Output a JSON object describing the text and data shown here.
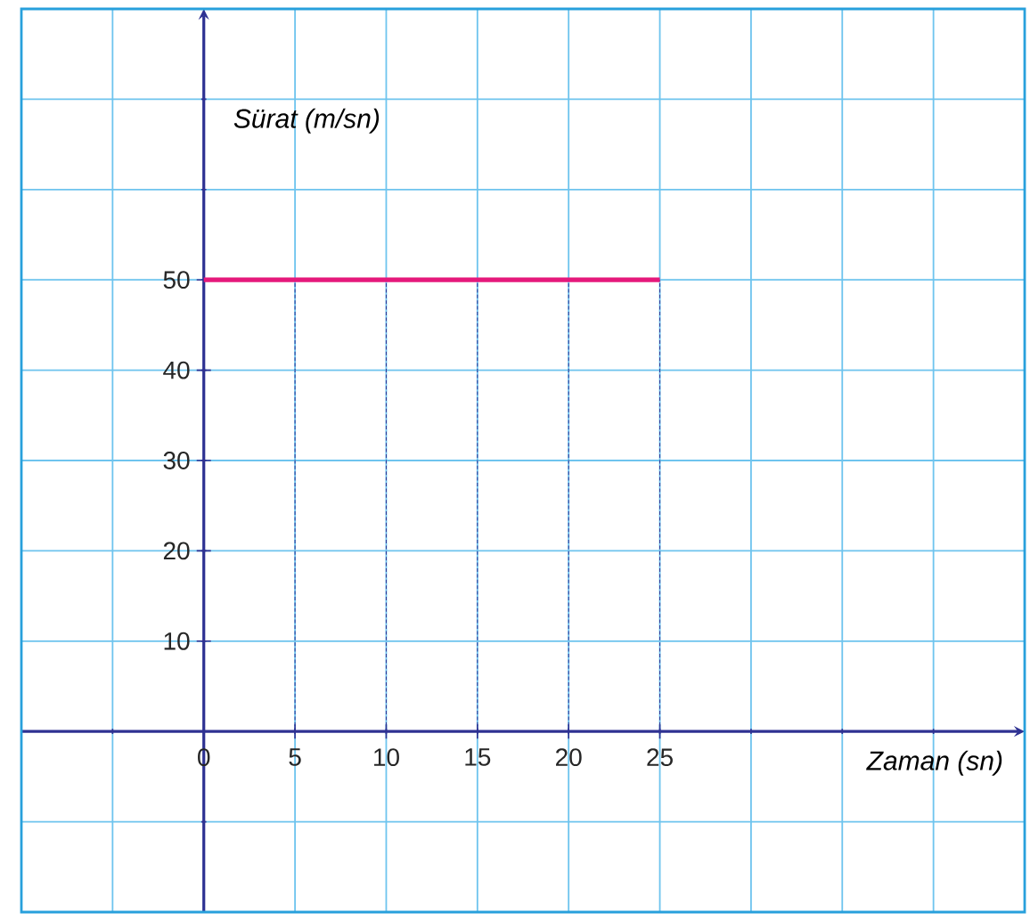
{
  "chart_data": {
    "type": "line",
    "xlabel": "Zaman (sn)",
    "ylabel": "Sürat (m/sn)",
    "xlim": [
      -10,
      45
    ],
    "ylim": [
      -20,
      80
    ],
    "xticks": [
      0,
      5,
      10,
      15,
      20,
      25
    ],
    "yticks": [
      10,
      20,
      30,
      40,
      50
    ],
    "grid": true,
    "marker": "none",
    "line_style": "solid",
    "series": [
      {
        "x": [
          0,
          25
        ],
        "values": [
          50,
          50
        ],
        "color": "#e5197b"
      }
    ],
    "ref_lines": [
      {
        "axis": "x",
        "value": 5,
        "color": "#2e3192",
        "line_style": "dashed"
      },
      {
        "axis": "x",
        "value": 10,
        "color": "#2e3192",
        "line_style": "dashed"
      },
      {
        "axis": "x",
        "value": 15,
        "color": "#2e3192",
        "line_style": "dashed"
      },
      {
        "axis": "x",
        "value": 20,
        "color": "#2e3192",
        "line_style": "dashed"
      },
      {
        "axis": "x",
        "value": 25,
        "color": "#2e3192",
        "line_style": "dashed"
      }
    ]
  }
}
